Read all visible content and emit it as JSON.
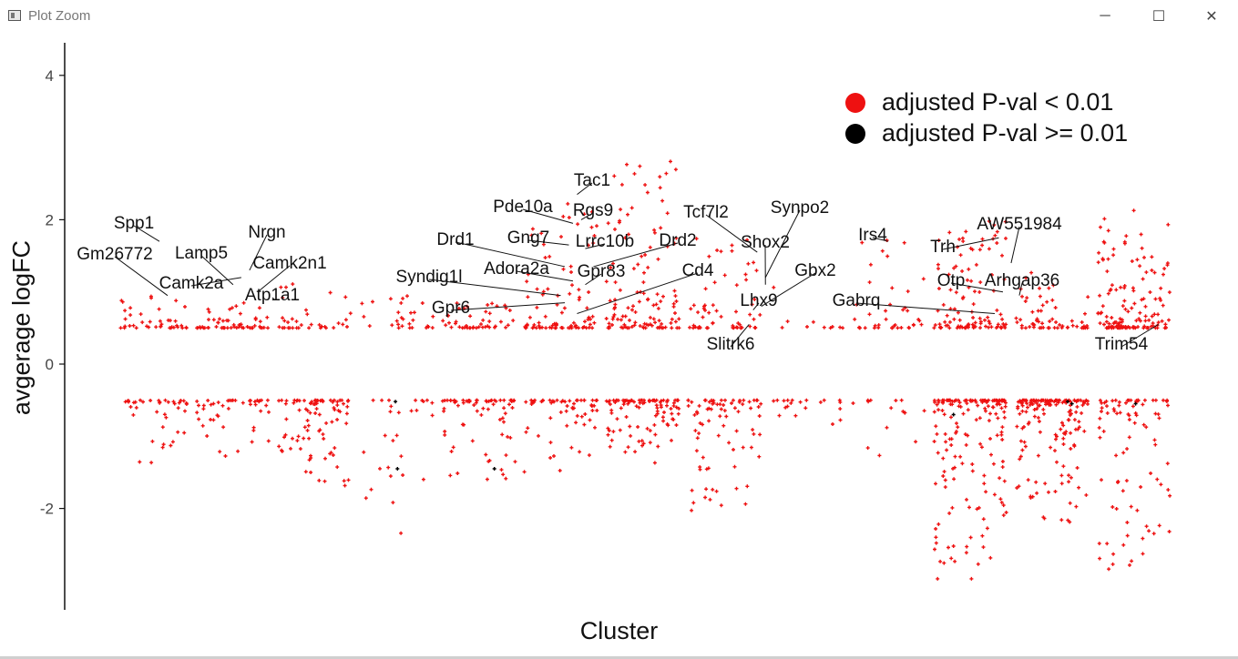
{
  "window": {
    "title": "Plot Zoom",
    "minimize_glyph": "─",
    "maximize_glyph": "☐",
    "close_glyph": "✕"
  },
  "chart_data": {
    "type": "scatter",
    "title": "",
    "xlabel": "Cluster",
    "ylabel": "avgerage logFC",
    "ylim": [
      -3.4,
      4.4
    ],
    "y_ticks": [
      4,
      2,
      0,
      -2
    ],
    "y_tick_labels": [
      "4",
      "2",
      "0",
      "-2"
    ],
    "grid": false,
    "x_ticks_shown": false,
    "legend": {
      "placement": "top-right",
      "entries": [
        {
          "label": "adjusted P-val < 0.01",
          "color": "#ee1111"
        },
        {
          "label": "adjusted P-val >= 0.01",
          "color": "#000000"
        }
      ]
    },
    "clusters": [
      {
        "id": 1,
        "up_n": 40,
        "down_n": 40,
        "up_max": 1.0,
        "down_min": -1.4
      },
      {
        "id": 2,
        "up_n": 55,
        "down_n": 45,
        "up_max": 0.85,
        "down_min": -1.6
      },
      {
        "id": 3,
        "up_n": 35,
        "down_n": 90,
        "up_max": 1.15,
        "down_min": -1.7
      },
      {
        "id": 4,
        "up_n": 28,
        "down_n": 28,
        "up_max": 0.95,
        "down_min": -2.45
      },
      {
        "id": 5,
        "up_n": 45,
        "down_n": 70,
        "up_max": 0.85,
        "down_min": -1.6
      },
      {
        "id": 6,
        "up_n": 90,
        "down_n": 60,
        "up_max": 2.4,
        "down_min": -1.5
      },
      {
        "id": 7,
        "up_n": 120,
        "down_n": 100,
        "up_max": 2.9,
        "down_min": -1.4
      },
      {
        "id": 8,
        "up_n": 60,
        "down_n": 80,
        "up_max": 1.8,
        "down_min": -2.05
      },
      {
        "id": 9,
        "up_n": 10,
        "down_n": 20,
        "up_max": 1.1,
        "down_min": -1.2
      },
      {
        "id": 10,
        "up_n": 40,
        "down_n": 15,
        "up_max": 1.75,
        "down_min": -1.4
      },
      {
        "id": 11,
        "up_n": 110,
        "down_n": 170,
        "up_max": 2.1,
        "down_min": -3.05
      },
      {
        "id": 12,
        "up_n": 60,
        "down_n": 160,
        "up_max": 1.3,
        "down_min": -2.25
      },
      {
        "id": 13,
        "up_n": 140,
        "down_n": 90,
        "up_max": 2.15,
        "down_min": -2.95
      }
    ],
    "annotations": [
      {
        "label": "Spp1",
        "x": 1.1,
        "y": 1.7
      },
      {
        "label": "Gm26772",
        "x": 1.2,
        "y": 0.95
      },
      {
        "label": "Lamp5",
        "x": 2.0,
        "y": 1.1
      },
      {
        "label": "Nrgn",
        "x": 2.2,
        "y": 1.3
      },
      {
        "label": "Camk2a",
        "x": 2.1,
        "y": 1.2
      },
      {
        "label": "Camk2n1",
        "x": 2.3,
        "y": 1.0
      },
      {
        "label": "Atp1a1",
        "x": 2.5,
        "y": 0.9
      },
      {
        "label": "Tac1",
        "x": 6.2,
        "y": 2.35
      },
      {
        "label": "Pde10a",
        "x": 6.15,
        "y": 1.95
      },
      {
        "label": "Rgs9",
        "x": 6.25,
        "y": 2.0
      },
      {
        "label": "Gng7",
        "x": 6.1,
        "y": 1.65
      },
      {
        "label": "Lrrc10b",
        "x": 6.3,
        "y": 1.6
      },
      {
        "label": "Drd1",
        "x": 6.05,
        "y": 1.35
      },
      {
        "label": "Drd2",
        "x": 6.4,
        "y": 1.35
      },
      {
        "label": "Adora2a",
        "x": 6.15,
        "y": 1.15
      },
      {
        "label": "Gpr83",
        "x": 6.3,
        "y": 1.1
      },
      {
        "label": "Syndig1l",
        "x": 6.0,
        "y": 0.95
      },
      {
        "label": "Cd4",
        "x": 6.2,
        "y": 0.7
      },
      {
        "label": "Gpr6",
        "x": 6.05,
        "y": 0.85
      },
      {
        "label": "Tcf7l2",
        "x": 8.4,
        "y": 1.55
      },
      {
        "label": "Synpo2",
        "x": 8.5,
        "y": 1.2
      },
      {
        "label": "Shox2",
        "x": 8.5,
        "y": 1.1
      },
      {
        "label": "Gbx2",
        "x": 8.45,
        "y": 0.8
      },
      {
        "label": "Lhx9",
        "x": 8.35,
        "y": 0.75
      },
      {
        "label": "Slitrk6",
        "x": 8.3,
        "y": 0.55
      },
      {
        "label": "Irs4",
        "x": 10.0,
        "y": 1.7
      },
      {
        "label": "Gabrq",
        "x": 11.3,
        "y": 0.7
      },
      {
        "label": "Otp",
        "x": 11.4,
        "y": 1.0
      },
      {
        "label": "Trh",
        "x": 11.35,
        "y": 1.75
      },
      {
        "label": "AW551984",
        "x": 11.5,
        "y": 1.4
      },
      {
        "label": "Arhgap36",
        "x": 11.6,
        "y": 0.95
      },
      {
        "label": "Trim54",
        "x": 13.3,
        "y": 0.55
      }
    ]
  }
}
